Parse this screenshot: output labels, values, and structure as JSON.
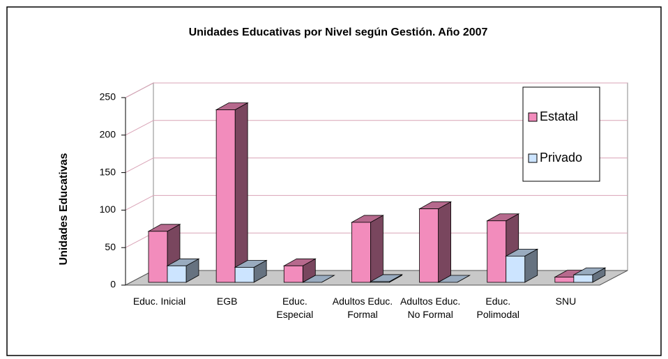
{
  "chart_data": {
    "type": "bar3d",
    "title": "Unidades Educativas por Nivel según Gestión. Año 2007",
    "y_label": "Unidades Educativas",
    "categories": [
      "Educ. Inicial",
      "EGB",
      "Educ. Especial",
      "Adultos Educ. Formal",
      "Adultos Educ. No Formal",
      "Educ. Polimodal",
      "SNU"
    ],
    "series": [
      {
        "name": "Estatal",
        "color": "#f28cbc",
        "values": [
          68,
          230,
          22,
          80,
          98,
          82,
          7
        ]
      },
      {
        "name": "Privado",
        "color": "#cce4ff",
        "values": [
          22,
          20,
          0,
          1,
          0,
          35,
          10
        ]
      }
    ],
    "ylim": [
      0,
      250
    ],
    "yticks": [
      0,
      50,
      100,
      150,
      200,
      250
    ],
    "grid": true,
    "legend": "upper right"
  }
}
